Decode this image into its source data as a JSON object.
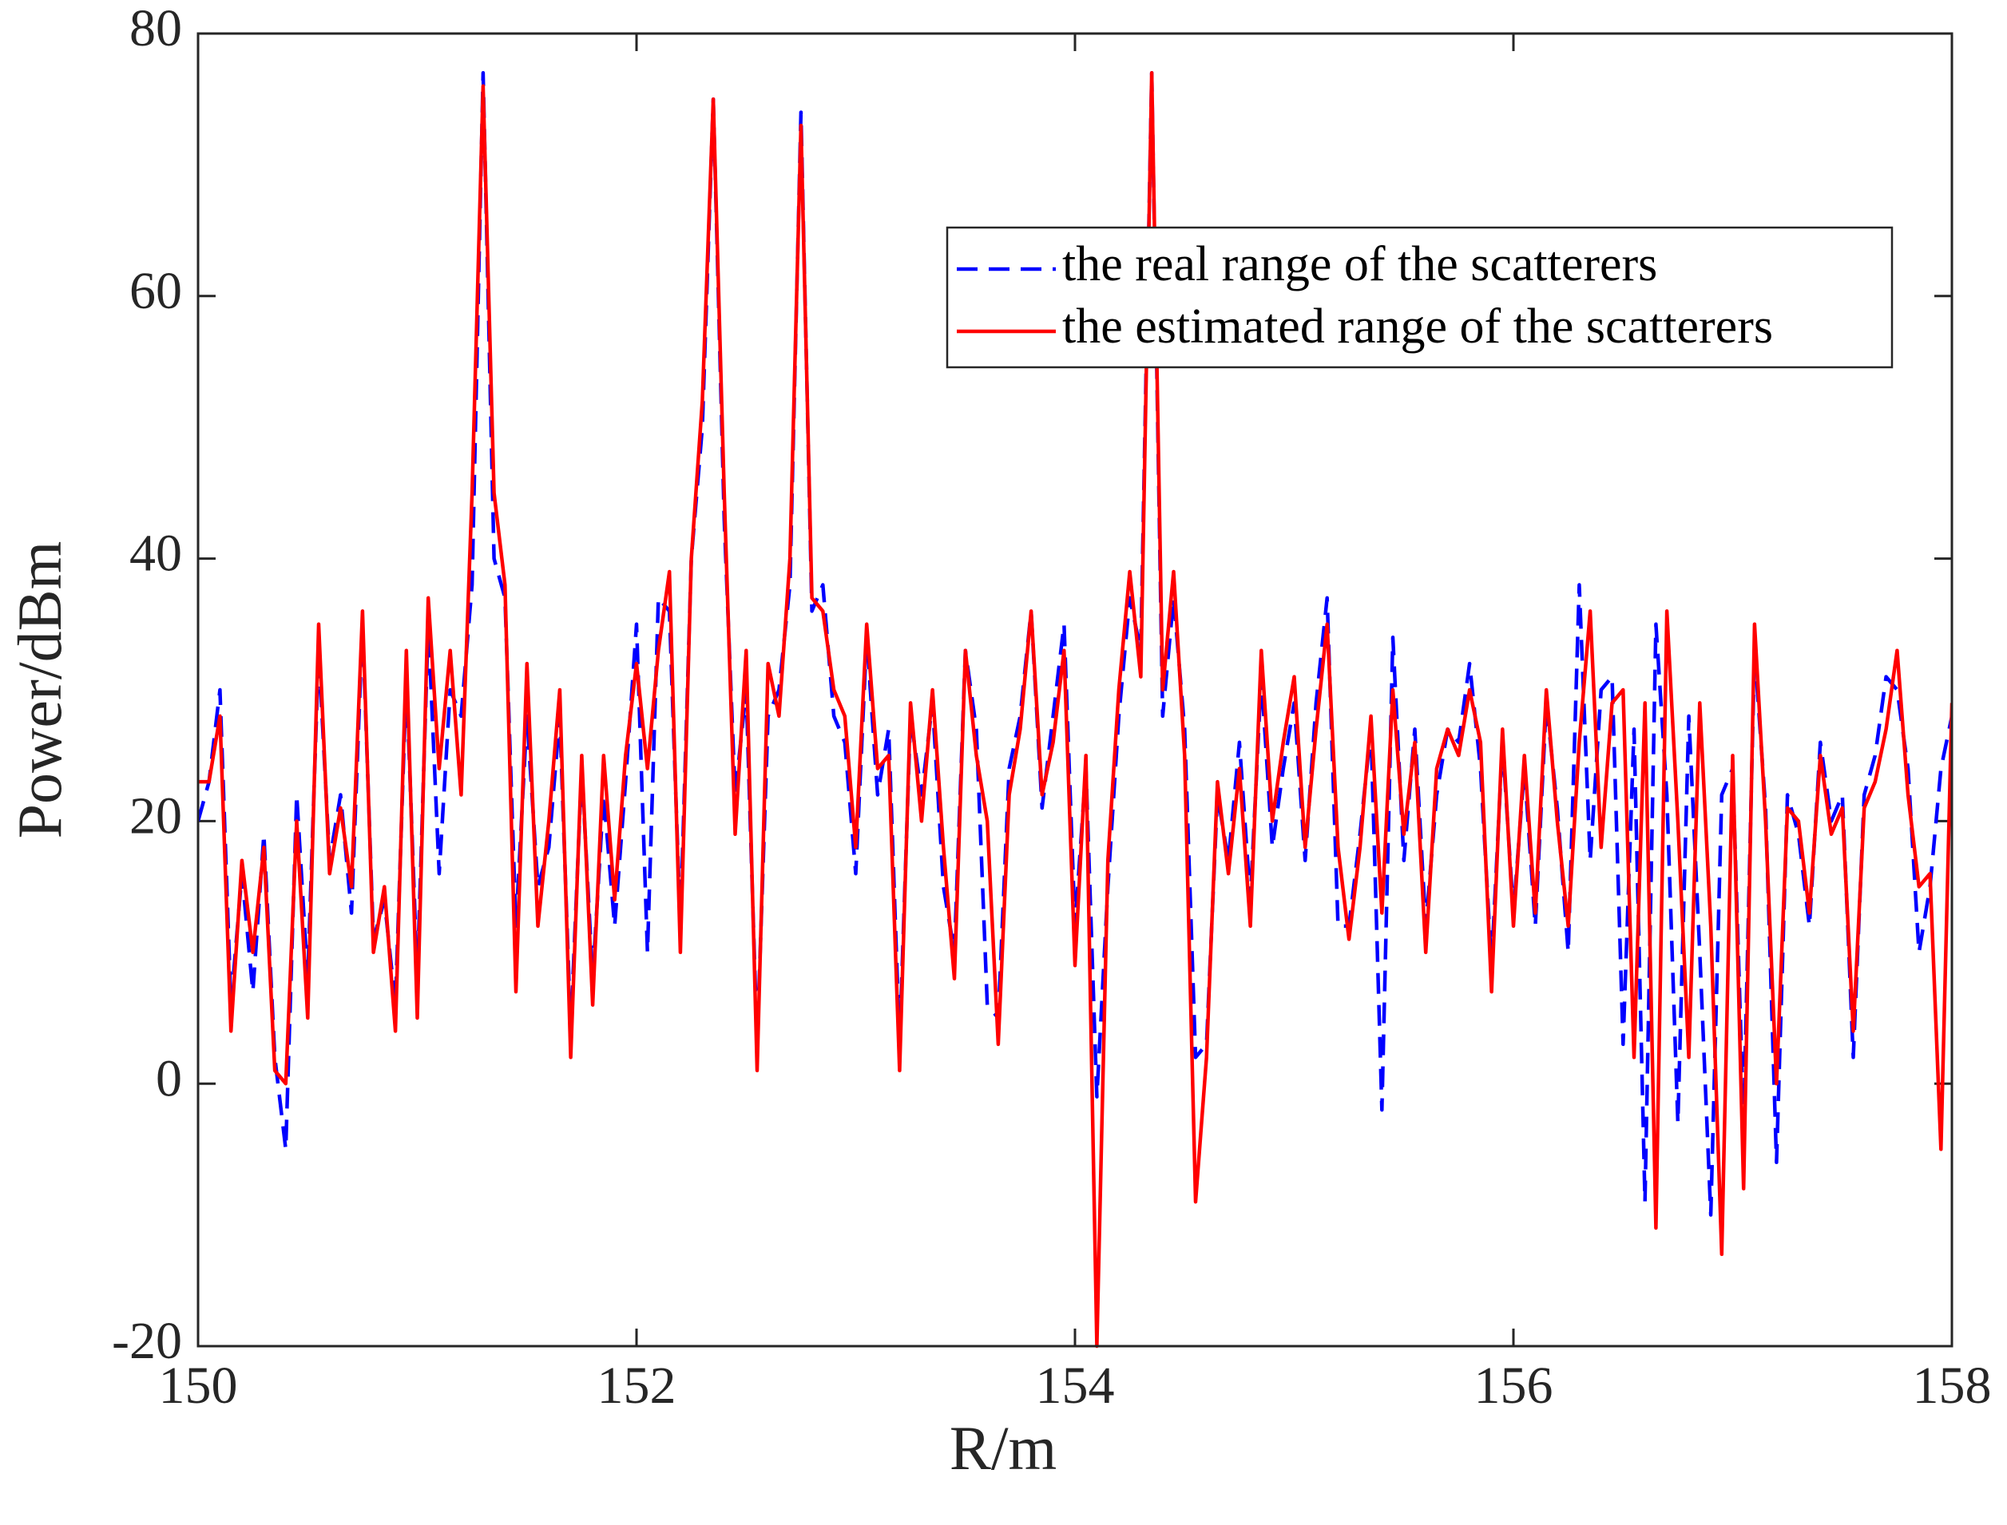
{
  "chart_data": {
    "type": "line",
    "xlabel": "R/m",
    "ylabel": "Power/dBm",
    "x": [
      150,
      150.05,
      150.1,
      150.15,
      150.2,
      150.25,
      150.3,
      150.35,
      150.4,
      150.45,
      150.5,
      150.55,
      150.6,
      150.65,
      150.7,
      150.75,
      150.8,
      150.85,
      150.9,
      150.95,
      151,
      151.05,
      151.1,
      151.15,
      151.2,
      151.25,
      151.3,
      151.35,
      151.4,
      151.45,
      151.5,
      151.55,
      151.6,
      151.65,
      151.7,
      151.75,
      151.8,
      151.85,
      151.9,
      151.95,
      152,
      152.05,
      152.1,
      152.15,
      152.2,
      152.25,
      152.3,
      152.35,
      152.4,
      152.45,
      152.5,
      152.55,
      152.6,
      152.65,
      152.7,
      152.75,
      152.8,
      152.85,
      152.9,
      152.95,
      153,
      153.05,
      153.1,
      153.15,
      153.2,
      153.25,
      153.3,
      153.35,
      153.4,
      153.45,
      153.5,
      153.55,
      153.6,
      153.65,
      153.7,
      153.75,
      153.8,
      153.85,
      153.9,
      153.95,
      154,
      154.05,
      154.1,
      154.15,
      154.2,
      154.25,
      154.3,
      154.35,
      154.4,
      154.45,
      154.5,
      154.55,
      154.6,
      154.65,
      154.7,
      154.75,
      154.8,
      154.85,
      154.9,
      154.95,
      155,
      155.05,
      155.1,
      155.15,
      155.2,
      155.25,
      155.3,
      155.35,
      155.4,
      155.45,
      155.5,
      155.55,
      155.6,
      155.65,
      155.7,
      155.75,
      155.8,
      155.85,
      155.9,
      155.95,
      156,
      156.05,
      156.1,
      156.15,
      156.2,
      156.25,
      156.3,
      156.35,
      156.4,
      156.45,
      156.5,
      156.55,
      156.6,
      156.65,
      156.7,
      156.75,
      156.8,
      156.85,
      156.9,
      156.95,
      157,
      157.05,
      157.1,
      157.15,
      157.2,
      157.25,
      157.3,
      157.35,
      157.4,
      157.45,
      157.5,
      157.55,
      157.6,
      157.65,
      157.7,
      157.75,
      157.8,
      157.85,
      157.9,
      157.95,
      158
    ],
    "series": [
      {
        "name": "the real range of the scatterers",
        "color": "#0000ff",
        "dash": true,
        "values": [
          20,
          23,
          30,
          6,
          16,
          7,
          19,
          2,
          -5,
          22,
          8,
          33,
          17,
          22,
          13,
          35,
          11,
          14,
          6,
          31,
          8,
          35,
          16,
          30,
          28,
          38,
          77,
          40,
          37,
          12,
          28,
          15,
          18,
          28,
          4,
          24,
          8,
          22,
          12,
          23,
          35,
          10,
          37,
          36,
          12,
          40,
          50,
          75,
          43,
          22,
          30,
          3,
          28,
          30,
          38,
          74,
          36,
          38,
          28,
          26,
          16,
          34,
          22,
          27,
          3,
          28,
          22,
          29,
          15,
          10,
          33,
          27,
          6,
          5,
          24,
          28,
          36,
          21,
          28,
          35,
          12,
          24,
          -1,
          15,
          28,
          37,
          33,
          77,
          28,
          37,
          27,
          2,
          3,
          22,
          17,
          26,
          14,
          31,
          18,
          24,
          29,
          17,
          29,
          37,
          12,
          12,
          19,
          27,
          -2,
          34,
          17,
          27,
          12,
          22,
          27,
          26,
          32,
          24,
          9,
          26,
          13,
          24,
          12,
          29,
          21,
          10,
          38,
          17,
          30,
          31,
          3,
          27,
          -9,
          35,
          22,
          -3,
          28,
          10,
          -10,
          22,
          24,
          -3,
          33,
          21,
          -6,
          22,
          19,
          12,
          26,
          20,
          22,
          2,
          22,
          25,
          31,
          30,
          24,
          10,
          15,
          24,
          28
        ]
      },
      {
        "name": "the estimated range of the scatterers",
        "color": "#ff0000",
        "dash": false,
        "values": [
          23,
          23,
          28,
          4,
          17,
          10,
          18,
          1,
          0,
          20,
          5,
          35,
          16,
          21,
          15,
          36,
          10,
          15,
          4,
          33,
          5,
          37,
          24,
          33,
          22,
          45,
          76,
          45,
          38,
          7,
          32,
          12,
          20,
          30,
          2,
          25,
          6,
          25,
          14,
          25,
          32,
          24,
          33,
          39,
          10,
          40,
          52,
          75,
          45,
          19,
          33,
          1,
          32,
          28,
          40,
          73,
          37,
          36,
          30,
          28,
          18,
          35,
          24,
          25,
          1,
          29,
          20,
          30,
          18,
          8,
          33,
          25,
          20,
          3,
          22,
          27,
          36,
          22,
          26,
          33,
          9,
          25,
          -20,
          17,
          30,
          39,
          31,
          77,
          30,
          39,
          25,
          -9,
          2,
          23,
          16,
          24,
          12,
          33,
          20,
          26,
          31,
          18,
          27,
          35,
          18,
          11,
          18,
          28,
          13,
          30,
          19,
          26,
          10,
          24,
          27,
          25,
          30,
          26,
          7,
          27,
          12,
          25,
          13,
          30,
          20,
          12,
          26,
          36,
          18,
          29,
          30,
          2,
          29,
          -11,
          36,
          20,
          2,
          29,
          12,
          -13,
          25,
          -8,
          35,
          20,
          0,
          21,
          20,
          13,
          25,
          19,
          21,
          4,
          21,
          23,
          27,
          33,
          22,
          15,
          16,
          -5,
          29
        ]
      }
    ],
    "xlim": [
      150,
      158
    ],
    "xticks": [
      150,
      152,
      154,
      156,
      158
    ],
    "ylim": [
      -20,
      80
    ],
    "yticks": [
      -20,
      0,
      20,
      40,
      60,
      80
    ],
    "grid": false,
    "legend": "upper right"
  }
}
